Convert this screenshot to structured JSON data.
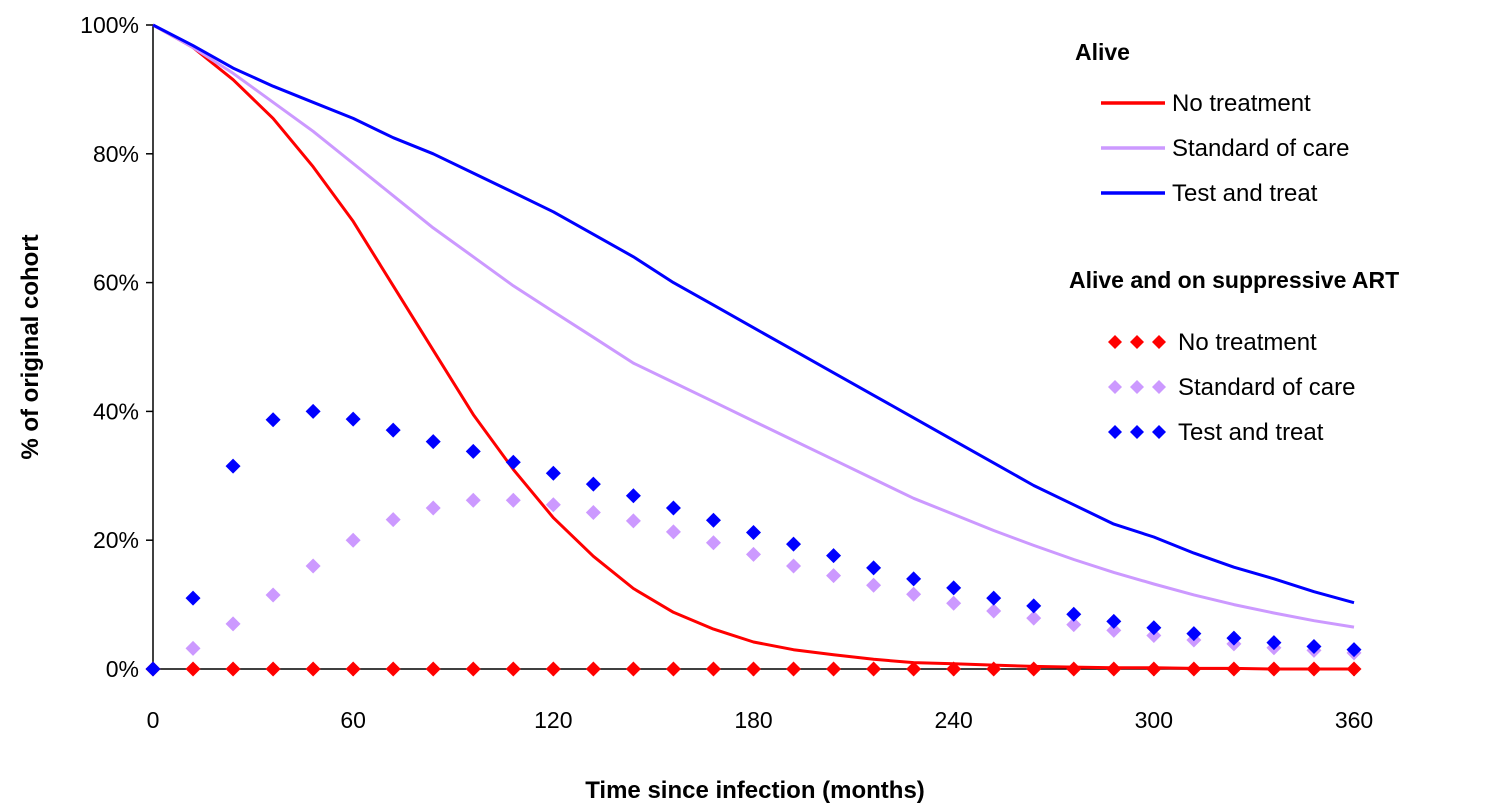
{
  "chart_data": {
    "type": "line",
    "title": "",
    "xlabel": "Time since infection (months)",
    "ylabel": "% of original cohort",
    "xlim": [
      0,
      360
    ],
    "ylim": [
      0,
      100
    ],
    "x_ticks": [
      "0",
      "60",
      "120",
      "180",
      "240",
      "300",
      "360"
    ],
    "y_ticks": [
      "0%",
      "20%",
      "40%",
      "60%",
      "80%",
      "100%"
    ],
    "grid": false,
    "legend_position": "top-right",
    "legend_groups": [
      {
        "heading": "Alive",
        "style": "line",
        "entries": [
          "No treatment",
          "Standard of care",
          "Test and treat"
        ]
      },
      {
        "heading": "Alive and on suppressive ART",
        "style": "diamonds",
        "entries": [
          "No treatment",
          "Standard of care",
          "Test and treat"
        ]
      }
    ],
    "colors": {
      "no_treatment": "#ff0000",
      "standard_of_care": "#cc99ff",
      "test_and_treat": "#0000ff"
    },
    "line_series": [
      {
        "name": "No treatment",
        "color": "#ff0000",
        "x": [
          0,
          12,
          24,
          36,
          48,
          60,
          72,
          84,
          96,
          108,
          120,
          132,
          144,
          156,
          168,
          180,
          192,
          204,
          216,
          228,
          240,
          252,
          264,
          276,
          288,
          300,
          312,
          324,
          336,
          348,
          360
        ],
        "y": [
          100,
          96.5,
          91.5,
          85.5,
          78,
          69.5,
          59.5,
          49.5,
          39.5,
          31,
          23.5,
          17.5,
          12.5,
          8.8,
          6.2,
          4.2,
          3,
          2.2,
          1.5,
          1,
          0.8,
          0.6,
          0.4,
          0.3,
          0.2,
          0.2,
          0.1,
          0.1,
          0,
          0,
          0
        ]
      },
      {
        "name": "Standard of care",
        "color": "#cc99ff",
        "x": [
          0,
          12,
          24,
          36,
          48,
          60,
          72,
          84,
          96,
          108,
          120,
          132,
          144,
          156,
          168,
          180,
          192,
          204,
          216,
          228,
          240,
          252,
          264,
          276,
          288,
          300,
          312,
          324,
          336,
          348,
          360
        ],
        "y": [
          100,
          96.5,
          92.5,
          88,
          83.5,
          78.5,
          73.5,
          68.5,
          64,
          59.5,
          55.5,
          51.5,
          47.5,
          44.5,
          41.5,
          38.5,
          35.5,
          32.5,
          29.5,
          26.5,
          24,
          21.5,
          19.2,
          17,
          15,
          13.2,
          11.5,
          10,
          8.7,
          7.5,
          6.5
        ]
      },
      {
        "name": "Test and treat",
        "color": "#0000ff",
        "x": [
          0,
          12,
          24,
          36,
          48,
          60,
          72,
          84,
          96,
          108,
          120,
          132,
          144,
          156,
          168,
          180,
          192,
          204,
          216,
          228,
          240,
          252,
          264,
          276,
          288,
          300,
          312,
          324,
          336,
          348,
          360
        ],
        "y": [
          100,
          96.8,
          93.3,
          90.5,
          88,
          85.5,
          82.5,
          80,
          77,
          74,
          71,
          67.5,
          64,
          60,
          56.5,
          53,
          49.5,
          46,
          42.5,
          39,
          35.5,
          32,
          28.5,
          25.5,
          22.5,
          20.5,
          18,
          15.8,
          14,
          12,
          10.3
        ]
      }
    ],
    "marker_series": [
      {
        "name": "No treatment",
        "color": "#ff0000",
        "x": [
          0,
          12,
          24,
          36,
          48,
          60,
          72,
          84,
          96,
          108,
          120,
          132,
          144,
          156,
          168,
          180,
          192,
          204,
          216,
          228,
          240,
          252,
          264,
          276,
          288,
          300,
          312,
          324,
          336,
          348,
          360
        ],
        "y": [
          0,
          0,
          0,
          0,
          0,
          0,
          0,
          0,
          0,
          0,
          0,
          0,
          0,
          0,
          0,
          0,
          0,
          0,
          0,
          0,
          0,
          0,
          0,
          0,
          0,
          0,
          0,
          0,
          0,
          0,
          0
        ]
      },
      {
        "name": "Standard of care",
        "color": "#cc99ff",
        "x": [
          12,
          24,
          36,
          48,
          60,
          72,
          84,
          96,
          108,
          120,
          132,
          144,
          156,
          168,
          180,
          192,
          204,
          216,
          228,
          240,
          252,
          264,
          276,
          288,
          300,
          312,
          324,
          336,
          348,
          360
        ],
        "y": [
          3.2,
          7,
          11.5,
          16,
          20,
          23.2,
          25,
          26.2,
          26.2,
          25.5,
          24.3,
          23,
          21.3,
          19.6,
          17.8,
          16,
          14.5,
          13,
          11.6,
          10.2,
          9,
          7.9,
          6.9,
          6,
          5.2,
          4.5,
          3.9,
          3.3,
          2.9,
          2.5
        ]
      },
      {
        "name": "Test and treat",
        "color": "#0000ff",
        "x": [
          0,
          12,
          24,
          36,
          48,
          60,
          72,
          84,
          96,
          108,
          120,
          132,
          144,
          156,
          168,
          180,
          192,
          204,
          216,
          228,
          240,
          252,
          264,
          276,
          288,
          300,
          312,
          324,
          336,
          348,
          360
        ],
        "y": [
          0,
          11,
          31.5,
          38.7,
          40,
          38.8,
          37.1,
          35.3,
          33.8,
          32.1,
          30.4,
          28.7,
          26.9,
          25,
          23.1,
          21.2,
          19.4,
          17.6,
          15.7,
          14,
          12.6,
          11,
          9.8,
          8.5,
          7.4,
          6.4,
          5.5,
          4.8,
          4.1,
          3.5,
          3
        ]
      }
    ]
  }
}
